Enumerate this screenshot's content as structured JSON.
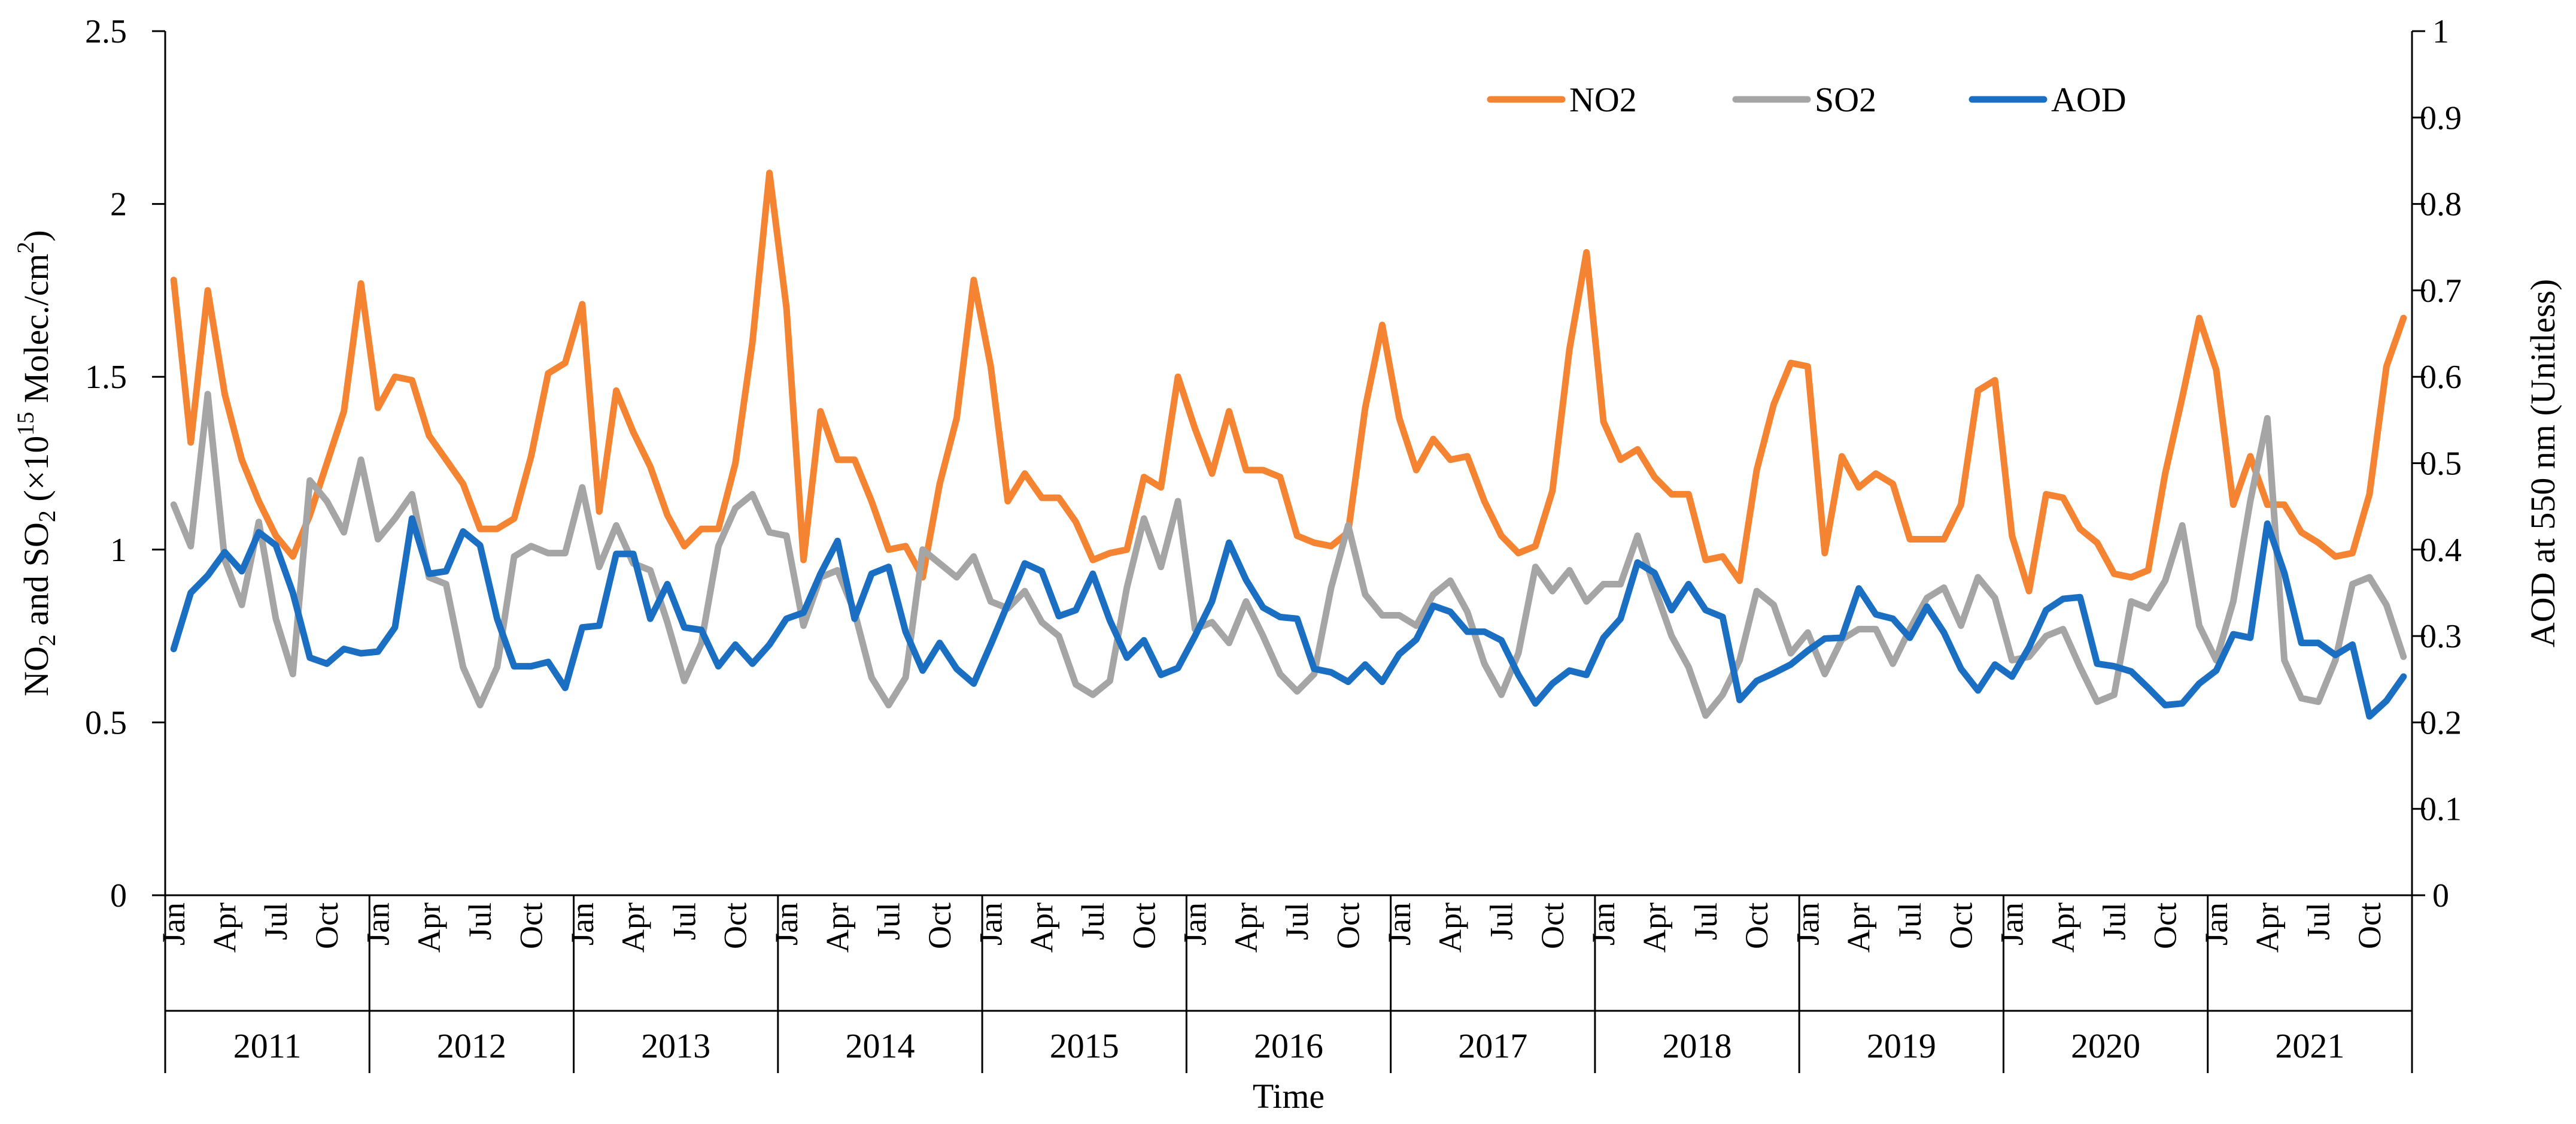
{
  "chart_data": {
    "type": "line",
    "xlabel": "Time",
    "ylabel_left_parts": [
      "NO",
      "2",
      " and SO",
      "2",
      " (×10",
      "15",
      " Molec./cm",
      "2",
      ")"
    ],
    "ylabel_right": "AOD at 550 nm (Unitless)",
    "ylim_left": [
      0,
      2.5
    ],
    "ylim_right": [
      0,
      1
    ],
    "yticks_left": [
      "0",
      "0.5",
      "1",
      "1.5",
      "2",
      "2.5"
    ],
    "yticks_right": [
      "0",
      "0.1",
      "0.2",
      "0.3",
      "0.4",
      "0.5",
      "0.6",
      "0.7",
      "0.8",
      "0.9",
      "1"
    ],
    "years": [
      "2011",
      "2012",
      "2013",
      "2014",
      "2015",
      "2016",
      "2017",
      "2018",
      "2019",
      "2020",
      "2021"
    ],
    "month_ticks": [
      "Jan",
      "Apr",
      "Jul",
      "Oct"
    ],
    "legend": [
      "NO2",
      "SO2",
      "AOD"
    ],
    "series": [
      {
        "name": "NO2",
        "axis": "left",
        "color": "#F58432",
        "values": [
          1.78,
          1.31,
          1.75,
          1.45,
          1.26,
          1.14,
          1.04,
          0.98,
          1.1,
          1.25,
          1.4,
          1.77,
          1.41,
          1.5,
          1.49,
          1.33,
          1.26,
          1.19,
          1.06,
          1.06,
          1.09,
          1.27,
          1.51,
          1.54,
          1.71,
          1.11,
          1.46,
          1.34,
          1.24,
          1.1,
          1.01,
          1.06,
          1.06,
          1.25,
          1.6,
          2.09,
          1.7,
          0.97,
          1.4,
          1.26,
          1.26,
          1.14,
          1.0,
          1.01,
          0.92,
          1.19,
          1.38,
          1.78,
          1.53,
          1.14,
          1.22,
          1.15,
          1.15,
          1.08,
          0.97,
          0.99,
          1.0,
          1.21,
          1.18,
          1.5,
          1.35,
          1.22,
          1.4,
          1.23,
          1.23,
          1.21,
          1.04,
          1.02,
          1.01,
          1.05,
          1.41,
          1.65,
          1.38,
          1.23,
          1.32,
          1.26,
          1.27,
          1.14,
          1.04,
          0.99,
          1.01,
          1.17,
          1.58,
          1.86,
          1.37,
          1.26,
          1.29,
          1.21,
          1.16,
          1.16,
          0.97,
          0.98,
          0.91,
          1.23,
          1.42,
          1.54,
          1.53,
          0.99,
          1.27,
          1.18,
          1.22,
          1.19,
          1.03,
          1.03,
          1.03,
          1.13,
          1.46,
          1.49,
          1.04,
          0.88,
          1.16,
          1.15,
          1.06,
          1.02,
          0.93,
          0.92,
          0.94,
          1.22,
          1.44,
          1.67,
          1.52,
          1.13,
          1.27,
          1.13,
          1.13,
          1.05,
          1.02,
          0.98,
          0.99,
          1.16,
          1.53,
          1.67
        ]
      },
      {
        "name": "SO2",
        "axis": "left",
        "color": "#A5A5A5",
        "values": [
          1.13,
          1.01,
          1.45,
          0.97,
          0.84,
          1.08,
          0.8,
          0.64,
          1.2,
          1.14,
          1.05,
          1.26,
          1.03,
          1.09,
          1.16,
          0.92,
          0.9,
          0.66,
          0.55,
          0.66,
          0.98,
          1.01,
          0.99,
          0.99,
          1.18,
          0.95,
          1.07,
          0.96,
          0.94,
          0.79,
          0.62,
          0.73,
          1.01,
          1.12,
          1.16,
          1.05,
          1.04,
          0.78,
          0.92,
          0.94,
          0.82,
          0.63,
          0.55,
          0.63,
          1.0,
          0.96,
          0.92,
          0.98,
          0.85,
          0.83,
          0.88,
          0.79,
          0.75,
          0.61,
          0.58,
          0.62,
          0.89,
          1.09,
          0.95,
          1.14,
          0.77,
          0.79,
          0.73,
          0.85,
          0.75,
          0.64,
          0.59,
          0.64,
          0.89,
          1.07,
          0.87,
          0.81,
          0.81,
          0.78,
          0.87,
          0.91,
          0.82,
          0.67,
          0.58,
          0.7,
          0.95,
          0.88,
          0.94,
          0.85,
          0.9,
          0.9,
          1.04,
          0.89,
          0.75,
          0.66,
          0.52,
          0.58,
          0.68,
          0.88,
          0.84,
          0.7,
          0.76,
          0.64,
          0.74,
          0.77,
          0.77,
          0.67,
          0.77,
          0.86,
          0.89,
          0.78,
          0.92,
          0.86,
          0.68,
          0.69,
          0.75,
          0.77,
          0.66,
          0.56,
          0.58,
          0.85,
          0.83,
          0.91,
          1.07,
          0.78,
          0.68,
          0.85,
          1.14,
          1.38,
          0.68,
          0.57,
          0.56,
          0.68,
          0.9,
          0.92,
          0.84,
          0.69
        ]
      },
      {
        "name": "AOD",
        "axis": "right",
        "color": "#1B6FC2",
        "values": [
          0.285,
          0.35,
          0.37,
          0.397,
          0.375,
          0.42,
          0.405,
          0.35,
          0.275,
          0.268,
          0.285,
          0.28,
          0.282,
          0.31,
          0.436,
          0.372,
          0.375,
          0.421,
          0.405,
          0.32,
          0.265,
          0.265,
          0.27,
          0.24,
          0.31,
          0.312,
          0.395,
          0.395,
          0.32,
          0.36,
          0.31,
          0.307,
          0.265,
          0.29,
          0.268,
          0.29,
          0.32,
          0.327,
          0.372,
          0.41,
          0.32,
          0.372,
          0.38,
          0.305,
          0.26,
          0.292,
          0.262,
          0.245,
          0.29,
          0.337,
          0.384,
          0.375,
          0.323,
          0.33,
          0.372,
          0.318,
          0.275,
          0.295,
          0.255,
          0.263,
          0.3,
          0.34,
          0.408,
          0.365,
          0.333,
          0.322,
          0.32,
          0.262,
          0.258,
          0.247,
          0.267,
          0.247,
          0.279,
          0.296,
          0.335,
          0.328,
          0.305,
          0.305,
          0.295,
          0.255,
          0.222,
          0.245,
          0.26,
          0.255,
          0.298,
          0.32,
          0.385,
          0.373,
          0.33,
          0.36,
          0.33,
          0.322,
          0.226,
          0.248,
          0.257,
          0.267,
          0.283,
          0.297,
          0.298,
          0.355,
          0.325,
          0.32,
          0.298,
          0.334,
          0.304,
          0.262,
          0.237,
          0.267,
          0.253,
          0.287,
          0.33,
          0.343,
          0.345,
          0.268,
          0.265,
          0.259,
          0.24,
          0.22,
          0.222,
          0.245,
          0.26,
          0.302,
          0.298,
          0.43,
          0.373,
          0.292,
          0.292,
          0.278,
          0.29,
          0.207,
          0.225,
          0.253
        ]
      }
    ]
  }
}
